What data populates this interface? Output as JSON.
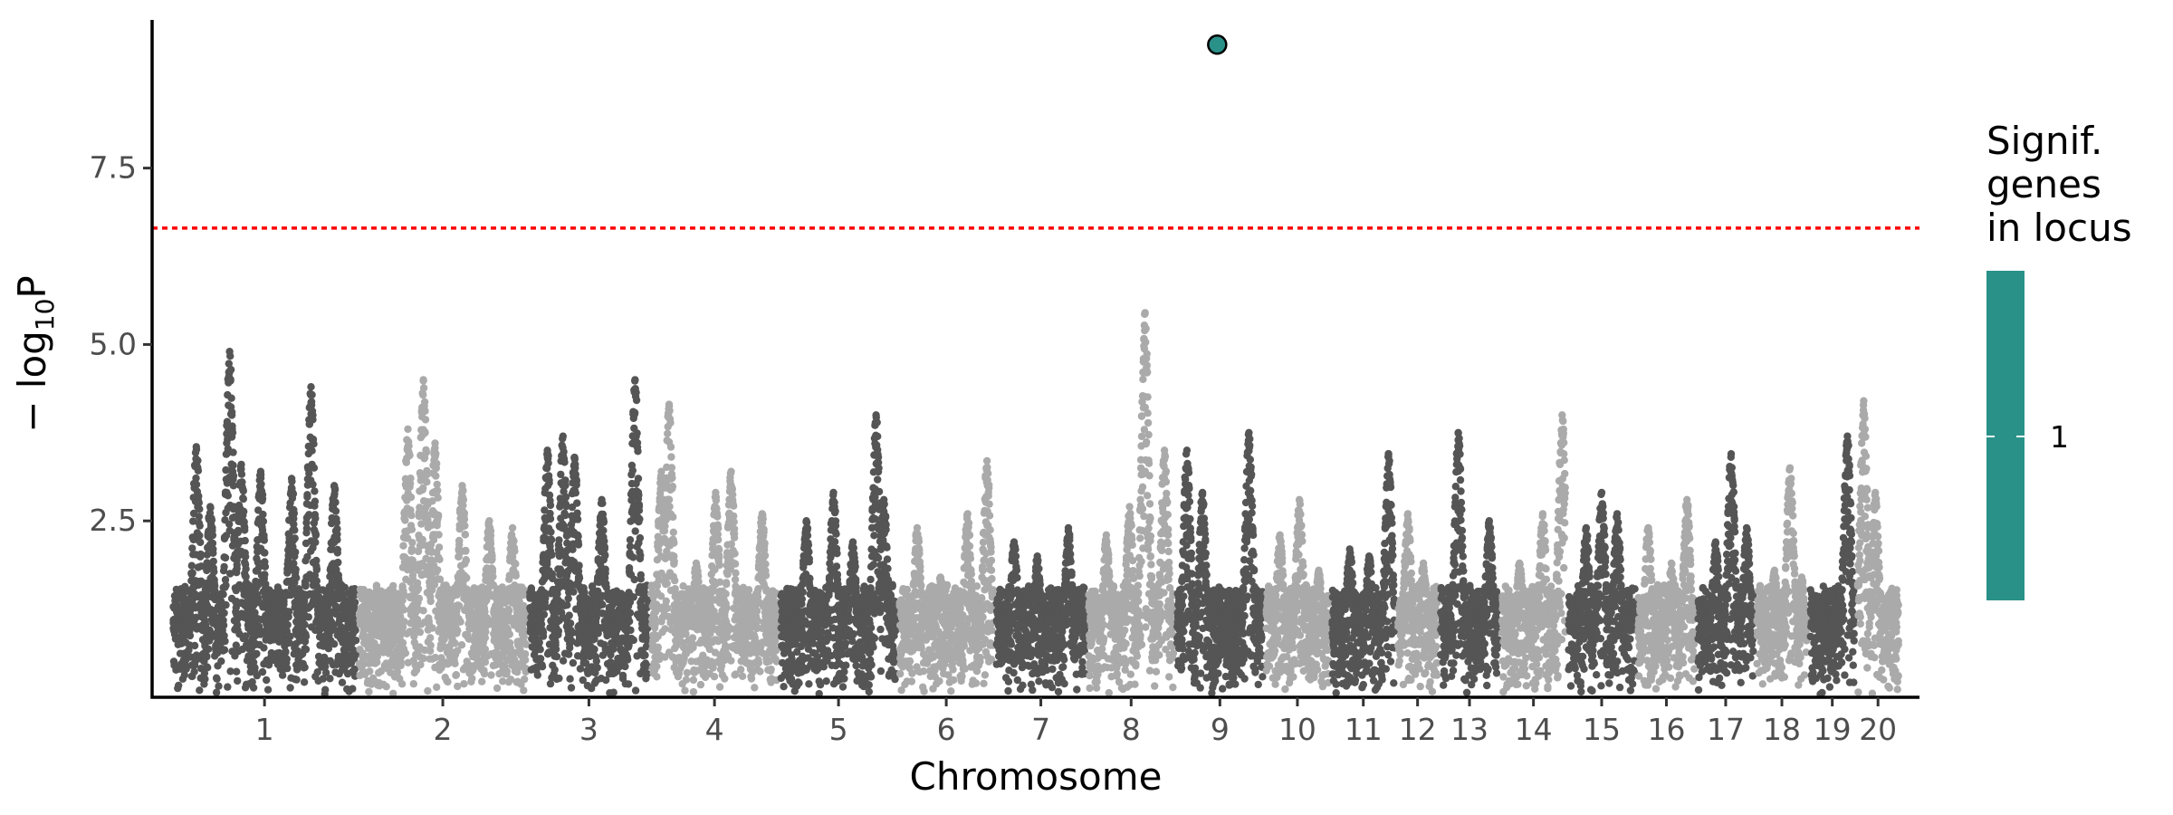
{
  "chart_data": {
    "type": "scatter",
    "title": "",
    "xlabel": "Chromosome",
    "ylabel": "−log₁₀P",
    "ylabel_parts": {
      "prefix": "− log",
      "sub": "10",
      "suffix": "P"
    },
    "ylim": [
      0,
      9.6
    ],
    "yticks": [
      2.5,
      5.0,
      7.5
    ],
    "ytick_labels": [
      "2.5",
      "5.0",
      "7.5"
    ],
    "grid": false,
    "significance_threshold": 6.65,
    "threshold_color": "#ff0000",
    "colors": {
      "dark": "#555555",
      "light": "#aaaaaa",
      "highlight": "#2a9189"
    },
    "chromosomes": [
      {
        "label": "1",
        "start": 0.0,
        "end": 24.0,
        "peaks": [
          [
            3.2,
            3.55
          ],
          [
            5.0,
            2.7
          ],
          [
            7.5,
            4.9
          ],
          [
            9.0,
            3.3
          ],
          [
            11.5,
            3.2
          ],
          [
            15.5,
            3.1
          ],
          [
            18.0,
            4.4
          ],
          [
            21.0,
            3.0
          ]
        ]
      },
      {
        "label": "2",
        "start": 24.0,
        "end": 46.0,
        "peaks": [
          [
            6.5,
            3.8
          ],
          [
            8.5,
            4.5
          ],
          [
            10.0,
            3.6
          ],
          [
            13.5,
            3.0
          ],
          [
            17.0,
            2.5
          ],
          [
            20.0,
            2.4
          ]
        ]
      },
      {
        "label": "3",
        "start": 46.0,
        "end": 61.7,
        "peaks": [
          [
            2.5,
            3.5
          ],
          [
            4.5,
            3.7
          ],
          [
            6.0,
            3.4
          ],
          [
            9.5,
            2.8
          ],
          [
            13.8,
            4.5
          ]
        ]
      },
      {
        "label": "4",
        "start": 61.7,
        "end": 78.4,
        "peaks": [
          [
            1.5,
            3.2
          ],
          [
            2.5,
            4.15
          ],
          [
            6.0,
            1.9
          ],
          [
            8.5,
            2.9
          ],
          [
            10.5,
            3.2
          ],
          [
            14.5,
            2.6
          ]
        ]
      },
      {
        "label": "5",
        "start": 78.4,
        "end": 93.7,
        "peaks": [
          [
            3.5,
            2.5
          ],
          [
            7.0,
            2.9
          ],
          [
            9.5,
            2.2
          ],
          [
            12.5,
            4.0
          ],
          [
            13.5,
            2.8
          ]
        ]
      },
      {
        "label": "6",
        "start": 93.7,
        "end": 106.2,
        "peaks": [
          [
            2.5,
            2.4
          ],
          [
            5.5,
            1.7
          ],
          [
            9.0,
            2.6
          ],
          [
            11.5,
            3.35
          ]
        ]
      },
      {
        "label": "7",
        "start": 106.2,
        "end": 118.1,
        "peaks": [
          [
            2.5,
            2.2
          ],
          [
            5.5,
            2.0
          ],
          [
            9.5,
            2.4
          ]
        ]
      },
      {
        "label": "8",
        "start": 118.1,
        "end": 129.5,
        "peaks": [
          [
            2.5,
            2.3
          ],
          [
            5.5,
            2.7
          ],
          [
            7.5,
            5.45
          ],
          [
            10.0,
            3.5
          ]
        ]
      },
      {
        "label": "9",
        "start": 129.5,
        "end": 141.0,
        "peaks": [
          [
            1.5,
            3.5
          ],
          [
            3.5,
            2.9
          ],
          [
            9.5,
            3.75
          ]
        ]
      },
      {
        "label": "10",
        "start": 141.0,
        "end": 149.5,
        "peaks": [
          [
            2.0,
            2.3
          ],
          [
            4.5,
            2.8
          ],
          [
            7.0,
            1.8
          ]
        ]
      },
      {
        "label": "11",
        "start": 149.5,
        "end": 158.0,
        "peaks": [
          [
            2.5,
            2.1
          ],
          [
            5.0,
            2.0
          ],
          [
            7.5,
            3.45
          ]
        ]
      },
      {
        "label": "12",
        "start": 158.0,
        "end": 163.5,
        "peaks": [
          [
            1.5,
            2.6
          ],
          [
            3.5,
            1.9
          ]
        ]
      },
      {
        "label": "13",
        "start": 163.5,
        "end": 171.4,
        "peaks": [
          [
            2.5,
            3.75
          ],
          [
            6.5,
            2.5
          ]
        ]
      },
      {
        "label": "14",
        "start": 171.4,
        "end": 180.0,
        "peaks": [
          [
            2.5,
            1.9
          ],
          [
            5.5,
            2.6
          ],
          [
            8.0,
            4.0
          ]
        ]
      },
      {
        "label": "15",
        "start": 180.0,
        "end": 189.0,
        "peaks": [
          [
            2.5,
            2.4
          ],
          [
            4.5,
            2.9
          ],
          [
            6.5,
            2.6
          ]
        ]
      },
      {
        "label": "16",
        "start": 189.0,
        "end": 196.7,
        "peaks": [
          [
            1.5,
            2.4
          ],
          [
            4.5,
            1.9
          ],
          [
            6.5,
            2.8
          ]
        ]
      },
      {
        "label": "17",
        "start": 196.7,
        "end": 204.3,
        "peaks": [
          [
            2.5,
            2.2
          ],
          [
            4.5,
            3.45
          ],
          [
            6.5,
            2.4
          ]
        ]
      },
      {
        "label": "18",
        "start": 204.3,
        "end": 211.2,
        "peaks": [
          [
            2.5,
            1.8
          ],
          [
            4.5,
            3.25
          ],
          [
            6.0,
            1.7
          ]
        ]
      },
      {
        "label": "19",
        "start": 211.2,
        "end": 217.3,
        "peaks": [
          [
            2.0,
            1.1
          ],
          [
            5.0,
            3.7
          ]
        ]
      },
      {
        "label": "20",
        "start": 217.3,
        "end": 223.0,
        "peaks": [
          [
            1.0,
            4.2
          ],
          [
            2.5,
            2.9
          ],
          [
            4.5,
            1.5
          ]
        ]
      }
    ],
    "highlight_points": [
      {
        "x": 134.9,
        "y": 9.25,
        "genes_in_locus": 1
      }
    ],
    "legend": {
      "title_lines": [
        "Signif.",
        "genes",
        "in locus"
      ],
      "labels": [
        "1"
      ],
      "position": "right",
      "colorbar_color": "#2a9189"
    }
  }
}
